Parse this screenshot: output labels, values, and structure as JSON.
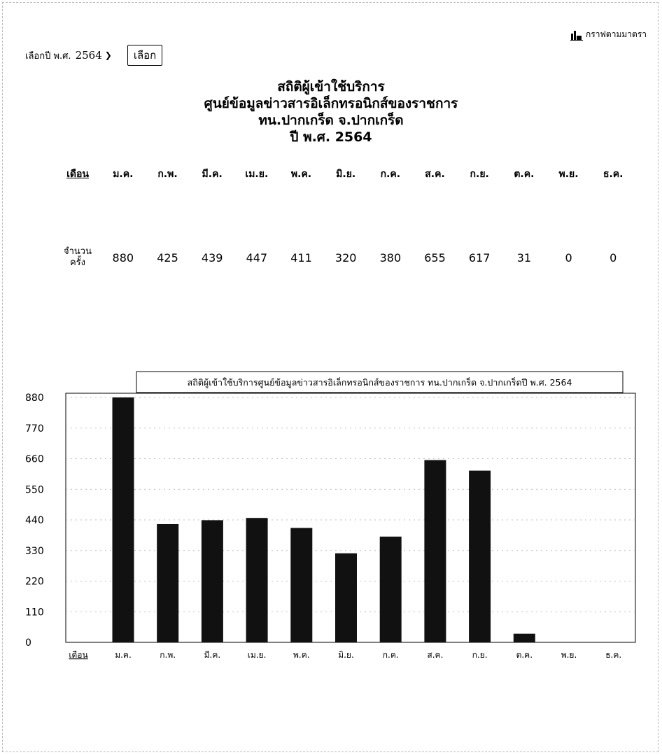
{
  "top_link": {
    "label": "กราฟตามมาตรา",
    "icon": "bar-chart-icon"
  },
  "year_picker": {
    "label": "เลือกปี พ.ศ.",
    "selected": "2564",
    "button_label": "เลือก"
  },
  "titles": [
    "สถิติผู้เข้าใช้บริการ",
    "ศูนย์ข้อมูลข่าวสารอิเล็กทรอนิกส์ของราชการ",
    "ทน.ปากเกร็ด จ.ปากเกร็ด",
    "ปี พ.ศ. 2564"
  ],
  "table": {
    "month_header": "เดือน",
    "count_header_line1": "จำนวน",
    "count_header_line2": "ครั้ง"
  },
  "chart_data": {
    "type": "bar",
    "title": "สถิติผู้เข้าใช้บริการศูนย์ข้อมูลข่าวสารอิเล็กทรอนิกส์ของราชการ ทน.ปากเกร็ด จ.ปากเกร็ดปี พ.ศ. 2564",
    "xlabel": "เดือน",
    "categories": [
      "ม.ค.",
      "ก.พ.",
      "มี.ค.",
      "เม.ย.",
      "พ.ค.",
      "มิ.ย.",
      "ก.ค.",
      "ส.ค.",
      "ก.ย.",
      "ต.ค.",
      "พ.ย.",
      "ธ.ค."
    ],
    "values": [
      880,
      425,
      439,
      447,
      411,
      320,
      380,
      655,
      617,
      31,
      0,
      0
    ],
    "yticks": [
      0,
      110,
      220,
      330,
      440,
      550,
      660,
      770,
      880
    ],
    "ylim": [
      0,
      880
    ],
    "grid": true,
    "bar_color": "#111111"
  }
}
